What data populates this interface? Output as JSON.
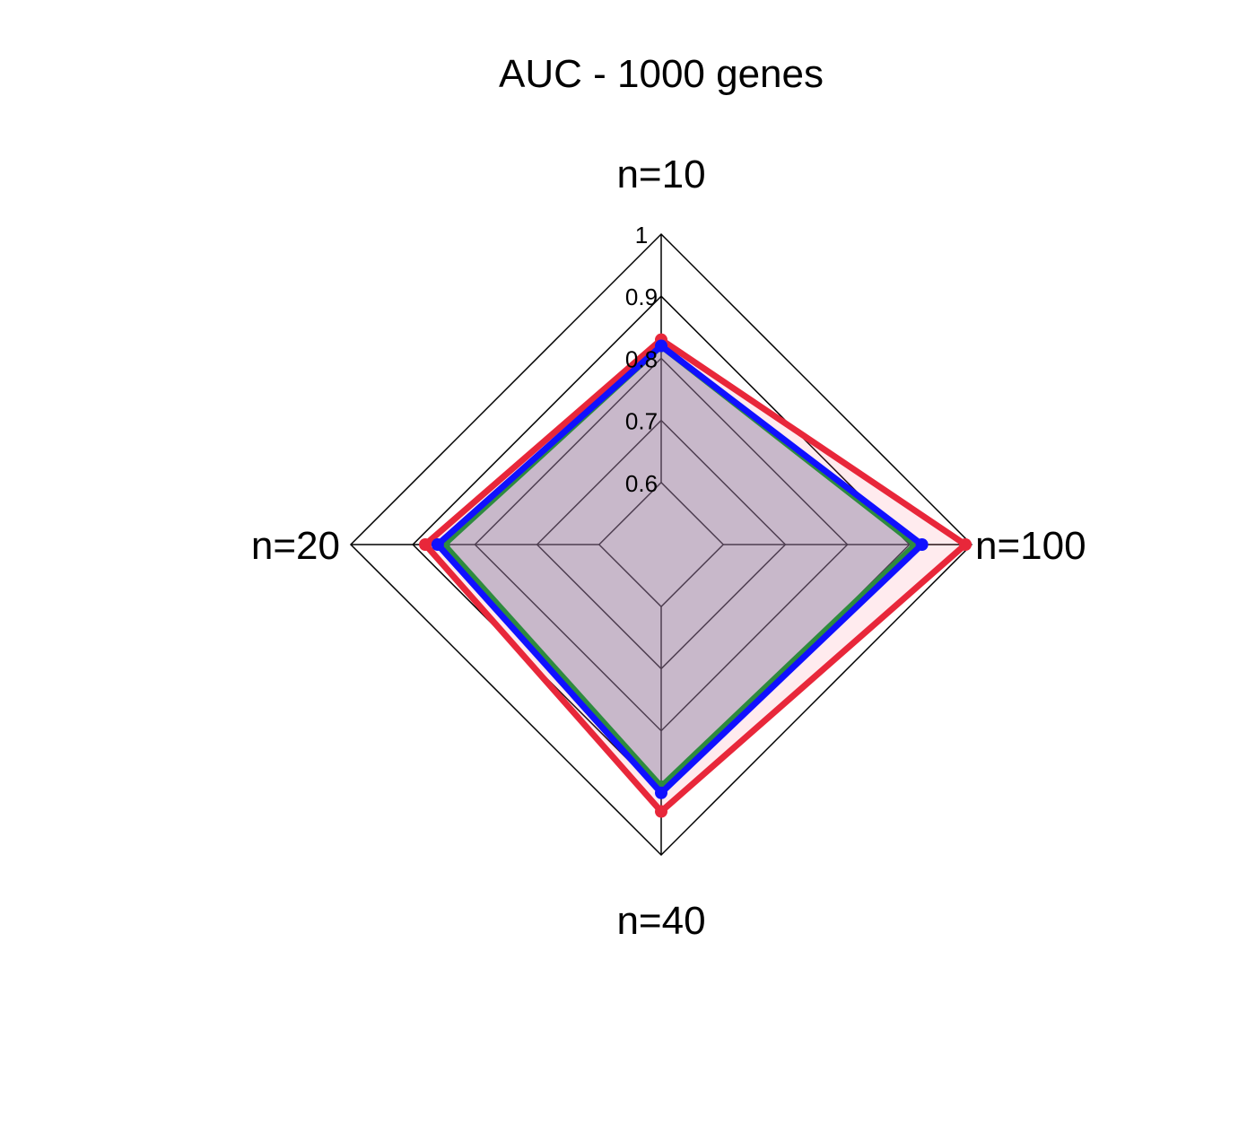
{
  "chart_data": {
    "type": "radar",
    "title": "AUC - 1000 genes",
    "axes": [
      "n=10",
      "n=100",
      "n=40",
      "n=20"
    ],
    "range": [
      0.5,
      1.0
    ],
    "ticks": [
      0.6,
      0.7,
      0.8,
      0.9,
      1.0
    ],
    "tick_labels": [
      "0.6",
      "0.7",
      "0.8",
      "0.9",
      "1"
    ],
    "grid": true,
    "legend": "none",
    "series": [
      {
        "color": "#2e8b3e",
        "values": [
          0.82,
          0.91,
          0.89,
          0.85
        ],
        "fill": "rgba(120,120,160,0.30)"
      },
      {
        "color": "#e8273a",
        "values": [
          0.83,
          0.99,
          0.93,
          0.88
        ],
        "fill": "rgba(255,120,140,0.15)"
      },
      {
        "color": "#1010ff",
        "values": [
          0.82,
          0.92,
          0.9,
          0.86
        ],
        "fill": "rgba(120,120,160,0.20)"
      }
    ]
  }
}
